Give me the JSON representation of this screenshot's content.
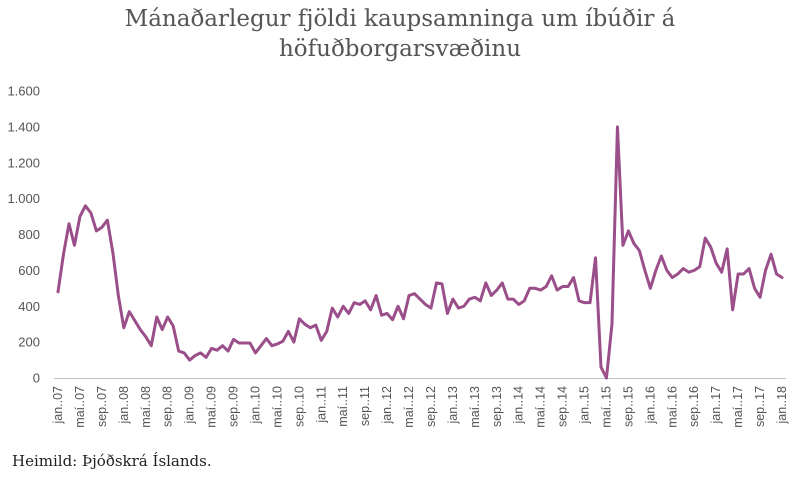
{
  "title_line1": "Mánaðarlegur fjöldi kaupsamninga um íbúðir á",
  "title_line2": "höfuðborgarsvæðinu",
  "source": "Heimild: Þjóðskrá Íslands.",
  "chart_data": {
    "type": "line",
    "title": "Mánaðarlegur fjöldi kaupsamninga um íbúðir á höfuðborgarsvæðinu",
    "xlabel": "",
    "ylabel": "",
    "ylim": [
      0,
      1600
    ],
    "y_ticks": [
      0,
      200,
      400,
      600,
      800,
      1000,
      1200,
      1400,
      1600
    ],
    "y_tick_labels": [
      "0",
      "200",
      "400",
      "600",
      "800",
      "1.000",
      "1.200",
      "1.400",
      "1.600"
    ],
    "x_tick_labels": [
      "jan..07",
      "maí..07",
      "sep..07",
      "jan..08",
      "maí..08",
      "sep..08",
      "jan..09",
      "maí..09",
      "sep..09",
      "jan..10",
      "maí..10",
      "sep..10",
      "jan..11",
      "maí..11",
      "sep..11",
      "jan..12",
      "maí..12",
      "sep..12",
      "jan..13",
      "maí..13",
      "sep..13",
      "jan..14",
      "maí..14",
      "sep..14",
      "jan..15",
      "maí..15",
      "sep..15",
      "jan..16",
      "maí..16",
      "sep..16",
      "jan..17",
      "maí..17",
      "sep..17",
      "jan..18"
    ],
    "grid": false,
    "line_color": "#9B4F8A",
    "series": [
      {
        "values": [
          480,
          690,
          860,
          740,
          900,
          960,
          920,
          820,
          840,
          880,
          700,
          460,
          280,
          370,
          320,
          270,
          230,
          180,
          340,
          270,
          340,
          290,
          150,
          140,
          100,
          125,
          140,
          115,
          165,
          155,
          180,
          150,
          215,
          195,
          195,
          195,
          140,
          180,
          220,
          180,
          190,
          205,
          260,
          200,
          330,
          300,
          280,
          295,
          210,
          260,
          390,
          340,
          400,
          360,
          420,
          410,
          430,
          380,
          460,
          350,
          360,
          325,
          400,
          330,
          460,
          470,
          440,
          410,
          390,
          530,
          525,
          360,
          440,
          390,
          400,
          440,
          450,
          430,
          530,
          460,
          490,
          530,
          440,
          440,
          410,
          430,
          500,
          500,
          490,
          510,
          570,
          490,
          510,
          510,
          560,
          430,
          420,
          420,
          670,
          60,
          0,
          300,
          1400,
          740,
          820,
          750,
          710,
          600,
          500,
          600,
          680,
          600,
          560,
          580,
          610,
          590,
          600,
          620,
          780,
          730,
          640,
          590,
          720,
          380,
          580,
          580,
          610,
          500,
          450,
          600,
          690,
          580,
          560
        ]
      }
    ]
  }
}
